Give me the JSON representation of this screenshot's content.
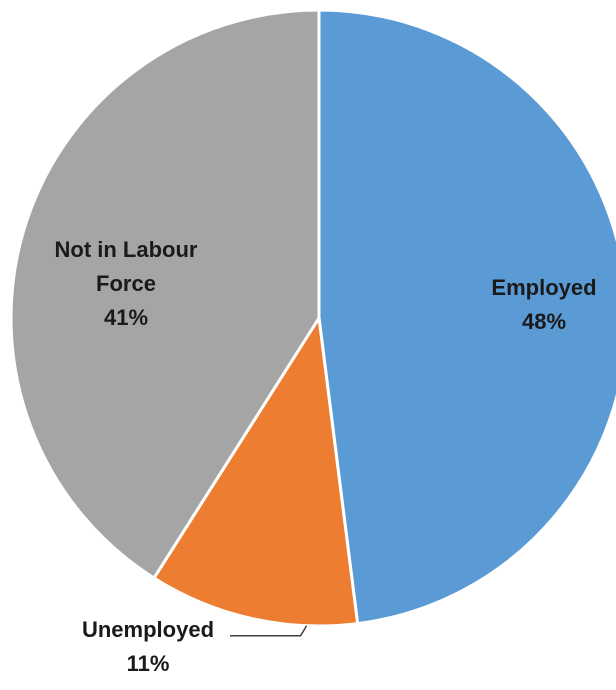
{
  "chart_data": {
    "type": "pie",
    "title": "",
    "slices": [
      {
        "label_lines": [
          "Employed"
        ],
        "value": 48,
        "value_label": "48%",
        "color": "#5b9bd5"
      },
      {
        "label_lines": [
          "Unemployed"
        ],
        "value": 11,
        "value_label": "11%",
        "color": "#ed7d31"
      },
      {
        "label_lines": [
          "Not in Labour",
          "Force"
        ],
        "value": 41,
        "value_label": "41%",
        "color": "#a5a5a5"
      }
    ],
    "start_angle_deg": 0,
    "direction": "clockwise",
    "slice_border_color": "#ffffff",
    "label_color": "#1a1a1a",
    "legend": "none"
  }
}
